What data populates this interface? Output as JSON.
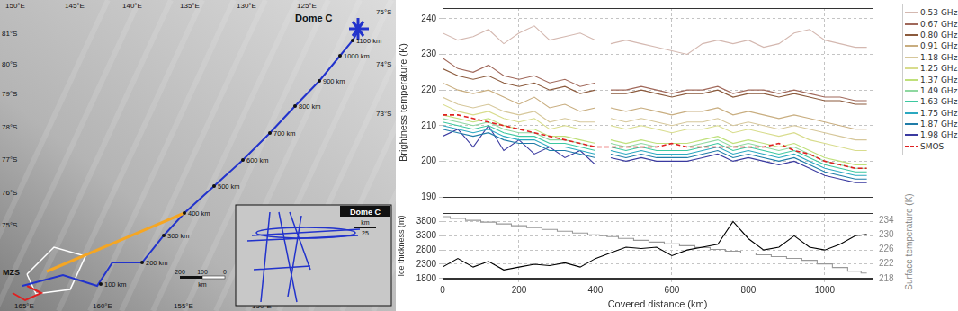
{
  "map": {
    "top_labels": [
      "150°E",
      "145°E",
      "140°E",
      "135°E",
      "130°E",
      "125°E"
    ],
    "left_labels": [
      "81°S",
      "80°S",
      "79°S",
      "78°S",
      "77°S",
      "76°S",
      "75°S"
    ],
    "right_labels": [
      "75°S",
      "74°S",
      "73°S"
    ],
    "bottom_labels": [
      "165°E",
      "160°E",
      "155°E",
      "150°E"
    ],
    "track_labels": [
      "100 km",
      "200 km",
      "300 km",
      "400 km",
      "500 km",
      "600 km",
      "700 km",
      "800 km",
      "900 km",
      "1000 km",
      "1100 km"
    ],
    "places": [
      "Dome C",
      "MZS"
    ],
    "scale": {
      "labels": [
        "200",
        "100",
        "0"
      ],
      "unit": "km"
    },
    "inset": {
      "title": "Dome C",
      "unit": "km",
      "scale": "25"
    }
  },
  "chart_data": [
    {
      "type": "line",
      "y_label": "Brightness temperature (K)",
      "x": [
        0,
        40,
        80,
        120,
        160,
        200,
        240,
        280,
        320,
        360,
        400,
        420,
        440,
        480,
        520,
        560,
        600,
        640,
        680,
        720,
        760,
        800,
        840,
        880,
        920,
        960,
        1000,
        1040,
        1080,
        1110
      ],
      "xlim": [
        0,
        1125
      ],
      "xticks": [
        0,
        200,
        400,
        600,
        800,
        1000
      ],
      "ylim": [
        190,
        243
      ],
      "yticks": [
        190,
        200,
        210,
        220,
        230,
        240
      ],
      "grid": true,
      "legend": "right",
      "tick_labels": "y",
      "series": [
        {
          "name": "0.53 GHz",
          "color": "#d4b8b0",
          "values": [
            236,
            234,
            235,
            237,
            233,
            236,
            238,
            234,
            235,
            236,
            234,
            null,
            233,
            234,
            233,
            232,
            231,
            230,
            233,
            234,
            233,
            234,
            232,
            233,
            236,
            237,
            234,
            233,
            232,
            232
          ]
        },
        {
          "name": "0.67 GHz",
          "color": "#a0685a",
          "values": [
            229,
            226,
            225,
            227,
            224,
            223,
            224,
            222,
            223,
            221,
            222,
            null,
            220,
            220,
            221,
            220,
            219,
            220,
            220,
            221,
            219,
            220,
            220,
            219,
            220,
            219,
            218,
            218,
            217,
            217
          ]
        },
        {
          "name": "0.80 GHz",
          "color": "#8b5a3c",
          "values": [
            226,
            224,
            223,
            224,
            222,
            221,
            222,
            220,
            221,
            219,
            220,
            null,
            219,
            219,
            220,
            219,
            218,
            219,
            219,
            220,
            218,
            219,
            219,
            218,
            219,
            218,
            217,
            217,
            216,
            216
          ]
        },
        {
          "name": "0.91 GHz",
          "color": "#c8ad7f",
          "values": [
            222,
            220,
            219,
            220,
            218,
            216,
            218,
            215,
            216,
            214,
            215,
            null,
            215,
            214,
            215,
            214,
            213,
            214,
            214,
            215,
            213,
            214,
            213,
            212,
            213,
            212,
            211,
            210,
            209,
            209
          ]
        },
        {
          "name": "1.18 GHz",
          "color": "#d6c79a",
          "values": [
            218,
            216,
            215,
            216,
            214,
            213,
            214,
            211,
            212,
            211,
            211,
            null,
            212,
            211,
            212,
            211,
            210,
            211,
            211,
            212,
            210,
            211,
            210,
            209,
            210,
            209,
            208,
            207,
            206,
            206
          ]
        },
        {
          "name": "1.25 GHz",
          "color": "#d8dc8c",
          "values": [
            216,
            214,
            213,
            214,
            212,
            211,
            212,
            209,
            210,
            209,
            209,
            null,
            210,
            209,
            210,
            209,
            208,
            209,
            209,
            210,
            208,
            209,
            208,
            207,
            208,
            206,
            205,
            204,
            203,
            203
          ]
        },
        {
          "name": "1.37 GHz",
          "color": "#bfe07a",
          "values": [
            213,
            212,
            211,
            212,
            210,
            209,
            209,
            207,
            207,
            206,
            205,
            null,
            206,
            205,
            206,
            205,
            205,
            205,
            206,
            207,
            205,
            206,
            205,
            204,
            205,
            203,
            201,
            200,
            199,
            199
          ]
        },
        {
          "name": "1.49 GHz",
          "color": "#8ed8a0",
          "values": [
            212,
            211,
            210,
            211,
            209,
            208,
            208,
            206,
            206,
            205,
            204,
            null,
            205,
            204,
            205,
            204,
            204,
            204,
            205,
            206,
            204,
            205,
            204,
            203,
            204,
            202,
            200,
            199,
            198,
            198
          ]
        },
        {
          "name": "1.63 GHz",
          "color": "#3cc8a0",
          "values": [
            211,
            210,
            209,
            210,
            208,
            207,
            207,
            205,
            205,
            204,
            203,
            null,
            204,
            203,
            204,
            203,
            203,
            203,
            204,
            205,
            203,
            204,
            203,
            202,
            203,
            201,
            199,
            198,
            197,
            197
          ]
        },
        {
          "name": "1.75 GHz",
          "color": "#2aa8c0",
          "values": [
            210,
            209,
            208,
            209,
            207,
            206,
            206,
            204,
            204,
            203,
            202,
            null,
            203,
            202,
            203,
            202,
            202,
            202,
            203,
            204,
            202,
            203,
            202,
            201,
            202,
            200,
            198,
            197,
            196,
            196
          ]
        },
        {
          "name": "1.87 GHz",
          "color": "#1f7ca8",
          "values": [
            209,
            208,
            207,
            208,
            206,
            205,
            205,
            203,
            203,
            202,
            201,
            null,
            202,
            201,
            202,
            201,
            201,
            201,
            202,
            203,
            201,
            202,
            201,
            200,
            201,
            199,
            197,
            196,
            195,
            195
          ]
        },
        {
          "name": "1.98 GHz",
          "color": "#3a3aa0",
          "values": [
            207,
            209,
            204,
            210,
            203,
            206,
            202,
            204,
            201,
            203,
            199,
            null,
            201,
            200,
            201,
            200,
            200,
            200,
            201,
            202,
            200,
            201,
            200,
            199,
            200,
            198,
            196,
            195,
            194,
            194
          ]
        },
        {
          "name": "SMOS",
          "color": "#e02020",
          "line_style": "dashed",
          "values": [
            213,
            213,
            212,
            211,
            210,
            209,
            208,
            207,
            206,
            205,
            204,
            204,
            204,
            204,
            204,
            204,
            205,
            204,
            204,
            204,
            204,
            204,
            204,
            205,
            203,
            202,
            200,
            199,
            198,
            198
          ]
        }
      ]
    },
    {
      "type": "line",
      "x_label": "Covered distance (km)",
      "y_label": "Ice thickness (m)",
      "y2_label": "Surface temperature (K)",
      "x": [
        0,
        40,
        80,
        120,
        160,
        200,
        240,
        280,
        320,
        360,
        400,
        420,
        440,
        480,
        520,
        560,
        600,
        640,
        680,
        720,
        760,
        800,
        840,
        880,
        920,
        960,
        1000,
        1040,
        1080,
        1110
      ],
      "xlim": [
        0,
        1125
      ],
      "xticks": [
        0,
        200,
        400,
        600,
        800,
        1000
      ],
      "ylim": [
        1800,
        4100
      ],
      "yticks": [
        1800,
        2300,
        2800,
        3300,
        3800
      ],
      "y2lim": [
        218,
        236
      ],
      "y2ticks": [
        218,
        222,
        226,
        230,
        234
      ],
      "grid": true,
      "series": [
        {
          "color": "#000000",
          "axis": "y",
          "values": [
            2200,
            2500,
            2200,
            2400,
            2100,
            2200,
            2300,
            2250,
            2350,
            2200,
            2500,
            2600,
            2700,
            2900,
            2850,
            2900,
            2600,
            2800,
            2900,
            3000,
            3800,
            3200,
            2800,
            2900,
            3300,
            2900,
            2800,
            3000,
            3300,
            3350
          ]
        },
        {
          "color": "#999999",
          "axis": "y2",
          "line_style": "steps",
          "values": [
            235,
            234.5,
            234,
            233.5,
            233,
            232.5,
            232,
            231.5,
            231,
            230.5,
            230,
            229.8,
            229.5,
            229,
            228.5,
            228,
            227.5,
            227,
            226.5,
            226,
            225.5,
            225,
            224.5,
            224,
            223.5,
            223,
            222,
            221,
            220,
            219.5
          ]
        }
      ]
    }
  ]
}
